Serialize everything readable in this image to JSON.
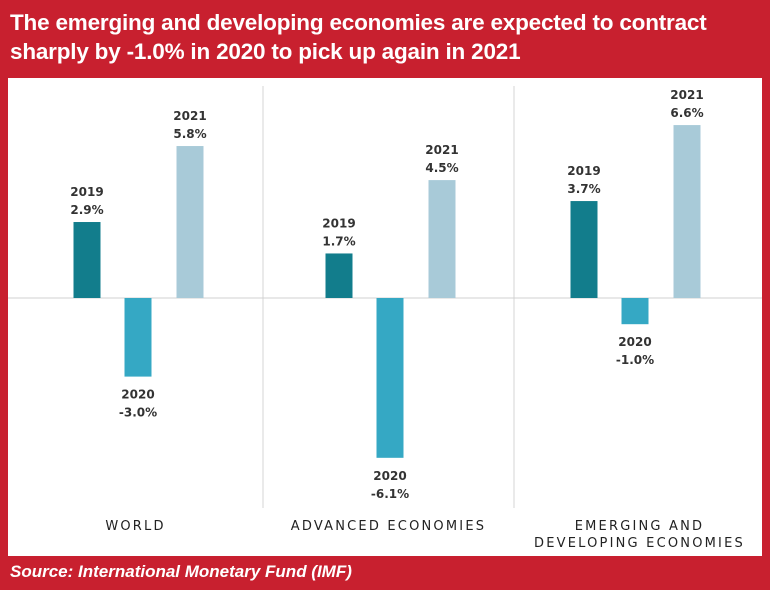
{
  "title": "The emerging and developing economies are expected to contract sharply by -1.0% in 2020 to pick up again in 2021",
  "source": "Source: International Monetary Fund (IMF)",
  "colors": {
    "background": "#c8202f",
    "2019": "#127d8c",
    "2020": "#35a8c4",
    "2021": "#a8cad8"
  },
  "chart_data": {
    "type": "bar",
    "categories": [
      [
        "WORLD"
      ],
      [
        "ADVANCED ECONOMIES"
      ],
      [
        "EMERGING AND",
        "DEVELOPING ECONOMIES"
      ]
    ],
    "series": [
      {
        "year": "2019",
        "values": [
          2.9,
          1.7,
          3.7
        ],
        "labels": [
          "2.9%",
          "1.7%",
          "3.7%"
        ]
      },
      {
        "year": "2020",
        "values": [
          -3.0,
          -6.1,
          -1.0
        ],
        "labels": [
          "-3.0%",
          "-6.1%",
          "-1.0%"
        ]
      },
      {
        "year": "2021",
        "values": [
          5.8,
          4.5,
          6.6
        ],
        "labels": [
          "5.8%",
          "4.5%",
          "6.6%"
        ]
      }
    ],
    "ylim": [
      -7,
      8
    ],
    "grid": false
  }
}
